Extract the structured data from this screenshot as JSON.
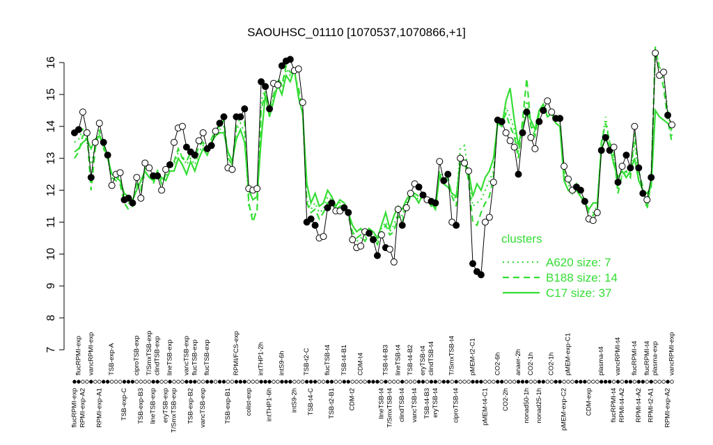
{
  "chart_data": {
    "type": "line",
    "title": "SAOUHSC_01110 [1070537,1070866,+1]",
    "ylim": [
      7,
      16
    ],
    "yticks": [
      7,
      8,
      9,
      10,
      11,
      12,
      13,
      14,
      15,
      16
    ],
    "legend_title": "clusters",
    "legend_position": "right",
    "categories": [
      "flucRPMI-exp",
      "flucRPMI-exp",
      "RPMI-exp-A2",
      null,
      "vancRPMI-exp",
      null,
      "RPMI-exp-A1",
      null,
      null,
      "TSB-exp-A",
      null,
      null,
      "TSB-exp-C",
      null,
      null,
      "ciproTSB-exp",
      "TSB-exp-B3",
      null,
      "T/SmxTSB-exp",
      "lineTSB-exp",
      "clindTSB-exp",
      null,
      "eryTSB-exp",
      "lineTSB-exp",
      "T/SmxTSB-exp",
      null,
      null,
      "vancTSB-exp",
      "TSB-exp-B2",
      "flucTSB-exp",
      null,
      "vancTSB-exp",
      "flucTSB-exp",
      null,
      null,
      null,
      null,
      "TSB-exp-B1",
      null,
      "RPMI/FCS-exp",
      null,
      null,
      "colist-exp",
      null,
      null,
      "intTHP1-2h",
      null,
      "intTHP1-6h",
      null,
      null,
      "intS9-6h",
      null,
      null,
      "intS9-2h",
      null,
      null,
      "TSB-t2-C",
      "TSB-t4-C",
      null,
      null,
      null,
      "flucTSB-t4",
      "TSB-t2-B1",
      null,
      null,
      "TSB-t4-B1",
      null,
      "CDM-t2",
      null,
      "CDM-t4",
      null,
      null,
      null,
      null,
      "lineTSB-t4",
      "TSB-t4-B3",
      "T/SmxTSB-t4",
      null,
      "lineTSB-t4",
      "clindTSB-t4",
      null,
      "TSB-t4-B2",
      "vancTSB-t4",
      null,
      "eryTSB-t4",
      "TSB-t4-B3",
      "clindTSB-t4",
      "eryTSB-t4",
      null,
      null,
      null,
      "T/SmxTSB-t4",
      "ciproTSB-t4",
      null,
      null,
      null,
      "pMEM-t2-C1",
      null,
      null,
      "pMEM-t4-C1",
      null,
      null,
      "CO2-6h",
      null,
      "CO2-2h",
      null,
      null,
      "anaer-2h",
      null,
      "nonad50-1h",
      "CO2-1h",
      null,
      "nonad25-1h",
      null,
      null,
      "CO2-1h",
      null,
      null,
      "pMEM-exp-C2",
      "pMEM-exp-C1",
      null,
      null,
      null,
      null,
      "CDM-exp",
      null,
      null,
      "plasma-t4",
      null,
      null,
      "flucRPMI-t4",
      "vancRPMI-t4",
      "RPMI-t4-A2",
      null,
      null,
      "flucRPMI-t4",
      "RPMI-t4-A2",
      null,
      "flucRPMI-t4",
      "RPMI-t2-A1",
      "plasma-exp",
      null,
      null,
      "RPMI-exp-A2",
      "vancRPMI-exp"
    ],
    "series": [
      {
        "color": "#000000",
        "marker": "circle",
        "values": [
          13.8,
          13.9,
          14.45,
          13.8,
          12.4,
          13.5,
          14.1,
          13.5,
          13.1,
          12.15,
          12.5,
          12.55,
          11.7,
          11.75,
          11.6,
          12.4,
          11.75,
          12.85,
          12.7,
          12.45,
          12.45,
          12.0,
          12.65,
          12.8,
          13.5,
          13.95,
          14.0,
          13.35,
          13.2,
          13.1,
          13.55,
          13.8,
          13.3,
          13.4,
          13.85,
          14.1,
          14.3,
          12.7,
          12.65,
          14.3,
          14.3,
          14.55,
          12.05,
          12.0,
          12.05,
          15.4,
          15.25,
          14.55,
          15.35,
          15.3,
          15.9,
          16.05,
          16.1,
          15.75,
          15.8,
          14.75,
          11.0,
          11.1,
          10.9,
          10.5,
          10.55,
          11.45,
          11.6,
          11.35,
          11.35,
          11.45,
          11.3,
          10.45,
          10.2,
          10.25,
          10.7,
          10.65,
          10.45,
          9.95,
          10.6,
          10.2,
          10.15,
          9.75,
          11.4,
          10.9,
          11.45,
          11.9,
          12.2,
          12.1,
          11.85,
          11.7,
          11.65,
          11.6,
          12.9,
          12.3,
          12.5,
          11.0,
          10.9,
          13.0,
          12.85,
          12.6,
          9.7,
          9.45,
          9.35,
          11.0,
          11.15,
          12.25,
          14.2,
          14.15,
          13.8,
          13.55,
          13.35,
          12.5,
          13.8,
          14.45,
          13.65,
          13.3,
          14.15,
          14.5,
          14.8,
          14.45,
          14.25,
          14.25,
          12.75,
          12.35,
          12.0,
          12.1,
          12.0,
          11.65,
          11.1,
          11.05,
          11.3,
          13.25,
          13.65,
          13.25,
          13.35,
          12.25,
          12.75,
          13.1,
          12.7,
          14.0,
          12.7,
          11.9,
          11.7,
          12.4,
          16.3,
          15.6,
          15.7,
          14.35,
          14.05
        ],
        "filled": [
          true,
          true,
          false,
          false,
          true,
          false,
          false,
          true,
          true,
          false,
          false,
          false,
          true,
          true,
          true,
          false,
          false,
          false,
          false,
          true,
          true,
          false,
          false,
          true,
          false,
          false,
          false,
          true,
          true,
          true,
          false,
          false,
          true,
          true,
          false,
          true,
          true,
          false,
          false,
          true,
          true,
          true,
          false,
          false,
          false,
          true,
          true,
          true,
          false,
          false,
          true,
          true,
          true,
          false,
          false,
          false,
          true,
          true,
          true,
          false,
          false,
          true,
          true,
          false,
          false,
          true,
          true,
          false,
          false,
          false,
          false,
          true,
          true,
          true,
          false,
          true,
          false,
          false,
          false,
          true,
          false,
          false,
          false,
          true,
          true,
          false,
          true,
          true,
          false,
          true,
          true,
          false,
          true,
          false,
          false,
          false,
          true,
          true,
          true,
          false,
          false,
          false,
          true,
          true,
          false,
          false,
          false,
          true,
          true,
          true,
          false,
          false,
          true,
          true,
          false,
          false,
          true,
          true,
          false,
          false,
          false,
          true,
          true,
          true,
          false,
          false,
          false,
          true,
          true,
          true,
          false,
          true,
          false,
          true,
          true,
          false,
          true,
          true,
          false,
          true,
          false,
          false,
          false,
          true,
          false
        ]
      },
      {
        "name": "A620 size: 7",
        "color": "#33dd33",
        "dash": "dotted",
        "values": [
          13.5,
          13.6,
          13.9,
          13.5,
          12.8,
          13.4,
          13.8,
          13.3,
          13.0,
          12.3,
          12.4,
          12.4,
          11.8,
          11.6,
          11.6,
          12.2,
          12.1,
          12.5,
          12.5,
          12.4,
          12.6,
          12.3,
          12.4,
          12.7,
          12.8,
          13.2,
          13.1,
          12.8,
          13.0,
          12.8,
          13.2,
          13.4,
          13.2,
          13.5,
          13.8,
          13.9,
          14.0,
          13.0,
          12.8,
          13.9,
          14.1,
          13.8,
          11.5,
          11.2,
          11.3,
          14.8,
          15.2,
          14.5,
          14.9,
          15.4,
          15.2,
          15.8,
          15.6,
          15.7,
          15.0,
          14.5,
          11.7,
          11.4,
          11.6,
          11.3,
          11.4,
          11.8,
          11.7,
          11.5,
          11.6,
          11.5,
          11.2,
          10.6,
          10.4,
          10.5,
          10.5,
          10.6,
          10.6,
          10.4,
          10.8,
          11.0,
          10.7,
          10.9,
          11.3,
          11.2,
          11.6,
          11.8,
          11.8,
          11.7,
          11.8,
          11.7,
          11.5,
          11.5,
          12.6,
          12.3,
          12.3,
          11.9,
          11.7,
          13.3,
          13.4,
          12.5,
          11.5,
          11.6,
          11.7,
          12.0,
          12.3,
          12.6,
          14.2,
          14.1,
          14.6,
          14.3,
          13.9,
          13.2,
          14.1,
          14.8,
          14.1,
          13.8,
          14.4,
          14.6,
          14.4,
          14.4,
          14.2,
          14.1,
          12.5,
          12.2,
          11.9,
          12.1,
          11.8,
          11.6,
          11.3,
          11.3,
          11.5,
          13.4,
          14.3,
          13.5,
          13.0,
          12.1,
          12.5,
          12.5,
          12.5,
          13.5,
          12.4,
          12.0,
          11.6,
          12.2,
          16.4,
          15.9,
          15.5,
          14.5,
          13.7
        ]
      },
      {
        "name": "B188 size: 14",
        "color": "#33dd33",
        "dash": "dashed",
        "values": [
          13.0,
          13.2,
          13.7,
          13.8,
          12.0,
          13.3,
          13.9,
          13.3,
          13.1,
          12.4,
          12.3,
          12.2,
          11.6,
          11.4,
          11.5,
          12.2,
          12.0,
          12.7,
          12.6,
          12.2,
          12.6,
          12.2,
          12.5,
          12.8,
          12.9,
          13.3,
          13.0,
          12.9,
          13.2,
          13.0,
          13.4,
          13.5,
          13.3,
          13.6,
          13.9,
          14.0,
          14.2,
          13.0,
          12.8,
          14.0,
          14.3,
          14.2,
          11.6,
          11.0,
          11.4,
          14.5,
          15.1,
          14.6,
          15.0,
          15.5,
          15.3,
          15.9,
          15.7,
          15.6,
          15.2,
          14.5,
          11.6,
          11.3,
          11.4,
          11.1,
          11.3,
          11.6,
          11.7,
          11.4,
          11.5,
          11.5,
          11.2,
          10.7,
          10.5,
          10.6,
          10.4,
          10.6,
          10.5,
          10.3,
          10.7,
          10.9,
          10.6,
          10.7,
          11.2,
          11.0,
          11.5,
          11.8,
          11.9,
          11.8,
          11.8,
          11.7,
          11.5,
          11.6,
          12.4,
          12.3,
          12.4,
          11.8,
          11.5,
          13.1,
          12.9,
          12.3,
          11.0,
          10.9,
          11.3,
          11.6,
          11.8,
          12.4,
          14.3,
          14.1,
          14.4,
          14.0,
          13.7,
          13.0,
          14.2,
          15.5,
          14.0,
          13.7,
          14.4,
          14.6,
          14.5,
          14.5,
          14.3,
          14.2,
          12.6,
          12.3,
          11.9,
          12.2,
          11.9,
          11.7,
          11.3,
          11.2,
          11.4,
          13.5,
          14.1,
          13.5,
          13.2,
          11.9,
          12.5,
          12.6,
          12.4,
          13.8,
          12.6,
          12.1,
          11.4,
          12.3,
          16.5,
          15.8,
          15.2,
          14.2,
          13.5
        ]
      },
      {
        "name": "C17 size: 37",
        "color": "#33dd33",
        "dash": "solid",
        "values": [
          13.2,
          13.3,
          13.5,
          13.6,
          13.3,
          13.6,
          13.7,
          13.4,
          13.0,
          12.5,
          12.4,
          12.3,
          11.9,
          11.8,
          11.7,
          12.0,
          12.3,
          12.6,
          12.4,
          12.3,
          12.5,
          12.4,
          12.3,
          12.6,
          12.6,
          13.0,
          12.8,
          12.5,
          12.9,
          12.6,
          13.0,
          13.3,
          13.1,
          13.5,
          13.7,
          13.8,
          13.8,
          13.2,
          12.9,
          13.6,
          13.9,
          13.5,
          12.0,
          11.7,
          11.8,
          13.6,
          15.0,
          14.3,
          14.8,
          15.3,
          15.0,
          15.6,
          15.4,
          15.8,
          14.9,
          14.4,
          12.2,
          11.6,
          11.9,
          11.5,
          11.6,
          12.0,
          11.8,
          11.5,
          11.7,
          11.6,
          11.3,
          10.9,
          10.7,
          10.8,
          10.6,
          10.8,
          10.7,
          10.5,
          10.9,
          11.3,
          10.8,
          11.2,
          11.5,
          11.4,
          11.7,
          11.9,
          11.8,
          11.6,
          11.9,
          11.7,
          11.6,
          11.4,
          12.5,
          12.2,
          12.1,
          11.9,
          11.8,
          12.8,
          12.9,
          12.6,
          11.8,
          12.2,
          12.0,
          12.4,
          12.6,
          13.0,
          14.1,
          14.0,
          14.8,
          15.2,
          14.2,
          13.4,
          14.0,
          14.4,
          14.2,
          13.9,
          14.5,
          14.7,
          14.3,
          14.4,
          14.1,
          14.0,
          12.3,
          12.0,
          11.9,
          12.0,
          11.8,
          11.6,
          11.4,
          11.6,
          11.6,
          13.3,
          13.6,
          13.4,
          12.8,
          12.4,
          12.6,
          12.4,
          12.6,
          13.0,
          12.3,
          12.0,
          11.9,
          12.1,
          14.5,
          14.3,
          14.2,
          14.1,
          13.9
        ]
      }
    ]
  }
}
